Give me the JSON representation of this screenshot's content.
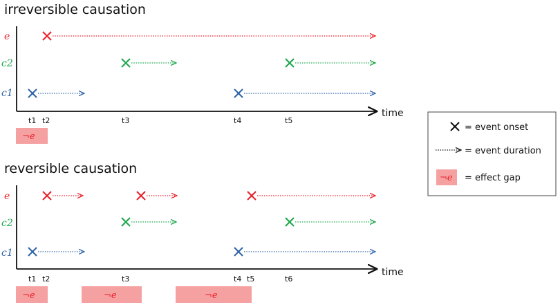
{
  "colors": {
    "e": "#e8202a",
    "c2": "#1aa64a",
    "c1": "#2c62a8",
    "axis": "#111111",
    "gap_fill": "#f6a1a1",
    "legend_border": "#444444"
  },
  "panels": [
    {
      "title": "irreversible causation",
      "axis_label": "time",
      "rows": [
        {
          "label": "e",
          "color_key": "e"
        },
        {
          "label": "c2",
          "color_key": "c2"
        },
        {
          "label": "c1",
          "color_key": "c1"
        }
      ],
      "ticks": [
        {
          "label": "t1",
          "t": 1
        },
        {
          "label": "t2",
          "t": 2
        },
        {
          "label": "t3",
          "t": 3
        },
        {
          "label": "t4",
          "t": 4
        },
        {
          "label": "t5",
          "t": 5
        }
      ],
      "events": [
        {
          "row": "e",
          "start": 2,
          "end": "end"
        },
        {
          "row": "c2",
          "start": 3,
          "end": "short"
        },
        {
          "row": "c2",
          "start": 5,
          "end": "end"
        },
        {
          "row": "c1",
          "start": 1,
          "end": "short"
        },
        {
          "row": "c1",
          "start": 4,
          "end": "end"
        }
      ],
      "gaps": [
        {
          "label": "¬e",
          "from": 1,
          "to": 2
        }
      ]
    },
    {
      "title": "reversible causation",
      "axis_label": "time",
      "rows": [
        {
          "label": "e",
          "color_key": "e"
        },
        {
          "label": "c2",
          "color_key": "c2"
        },
        {
          "label": "c1",
          "color_key": "c1"
        }
      ],
      "ticks": [
        {
          "label": "t1",
          "t": 1
        },
        {
          "label": "t2",
          "t": 2
        },
        {
          "label": "t3",
          "t": 3
        },
        {
          "label": "t4",
          "t": 4
        },
        {
          "label": "t5",
          "t": 5
        },
        {
          "label": "t6",
          "t": 6
        }
      ],
      "events": [
        {
          "row": "e",
          "start": 2,
          "end": "short"
        },
        {
          "row": "e",
          "start": "t3b",
          "end": "short"
        },
        {
          "row": "e",
          "start": 5,
          "end": "end"
        },
        {
          "row": "c2",
          "start": 3,
          "end": "short"
        },
        {
          "row": "c2",
          "start": 6,
          "end": "end"
        },
        {
          "row": "c1",
          "start": 1,
          "end": "short"
        },
        {
          "row": "c1",
          "start": 4,
          "end": "end"
        }
      ],
      "gaps": [
        {
          "label": "¬e",
          "from": 1,
          "to": 2
        },
        {
          "label": "¬e",
          "from": "g2a",
          "to": "g2b"
        },
        {
          "label": "¬e",
          "from": "g3a",
          "to": "g3b"
        }
      ]
    }
  ],
  "legend": [
    {
      "symbol": "cross",
      "text": "= event onset"
    },
    {
      "symbol": "arrow",
      "text": "= event duration"
    },
    {
      "symbol": "gap",
      "gap_label": "¬e",
      "text": "= effect gap"
    }
  ]
}
